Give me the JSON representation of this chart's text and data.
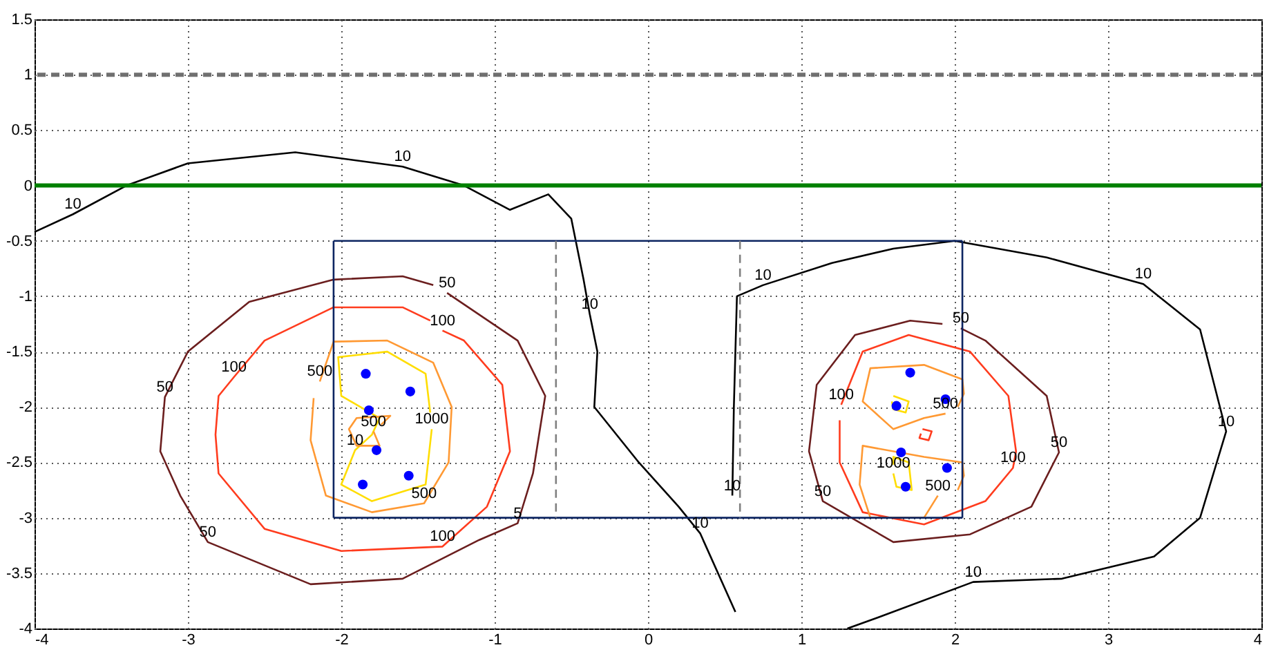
{
  "chart_data": {
    "type": "line",
    "xlim": [
      -4,
      4
    ],
    "ylim": [
      -4,
      1.5
    ],
    "xticks": [
      -4,
      -3,
      -2,
      -1,
      0,
      1,
      2,
      3,
      4
    ],
    "yticks": [
      -4,
      -3.5,
      -3,
      -2.5,
      -2,
      -1.5,
      -1,
      -0.5,
      0,
      0.5,
      1,
      1.5
    ],
    "grid": true,
    "series": [
      {
        "color": "#000000",
        "x": [
          -4,
          -3.75,
          -3.4,
          -3,
          -2.3,
          -1.6,
          -1.2,
          -0.9,
          -0.65,
          -0.5,
          -0.42,
          -0.38,
          -0.33,
          -0.35,
          -0.06,
          0.2,
          0.34,
          0.57
        ],
        "values": [
          -0.42,
          -0.26,
          0,
          0.2,
          0.3,
          0.17,
          0,
          -0.22,
          -0.08,
          -0.3,
          -0.85,
          -1.16,
          -1.5,
          -2.0,
          -2.5,
          -2.9,
          -3.14,
          -3.85
        ]
      },
      {
        "color": "#000000",
        "x": [
          0.55,
          0.56,
          0.58,
          0.75,
          1.2,
          1.6,
          2.0,
          2.6,
          3.23,
          3.6,
          3.77,
          3.6,
          3.3,
          2.7,
          2.12,
          1.5,
          1.3
        ],
        "values": [
          -2.8,
          -2.0,
          -1.0,
          -0.9,
          -0.7,
          -0.57,
          -0.5,
          -0.65,
          -0.89,
          -1.3,
          -2.22,
          -3.0,
          -3.35,
          -3.55,
          -3.58,
          -3.9,
          -4
        ]
      },
      {
        "color": "#6b1e1e",
        "x": [
          -1.31,
          -0.85,
          -0.67,
          -0.75,
          -0.85,
          -1.1,
          -1.6,
          -2.2,
          -2.87,
          -3.05,
          -3.18,
          -3.15,
          -3.0,
          -2.6,
          -2.05,
          -1.6,
          -1.4
        ],
        "values": [
          -0.97,
          -1.4,
          -1.9,
          -2.6,
          -3.05,
          -3.2,
          -3.55,
          -3.6,
          -3.22,
          -2.8,
          -2.4,
          -1.91,
          -1.5,
          -1.05,
          -0.85,
          -0.82,
          -0.9
        ]
      },
      {
        "color": "#ff3c1e",
        "x": [
          -1.34,
          -1.2,
          -0.95,
          -0.9,
          -1.05,
          -1.34,
          -2.0,
          -2.5,
          -2.8,
          -2.82,
          -2.8,
          -2.7,
          -2.5,
          -2.05,
          -1.6,
          -1.42
        ],
        "values": [
          -1.31,
          -1.4,
          -1.8,
          -2.4,
          -2.9,
          -3.26,
          -3.3,
          -3.1,
          -2.6,
          -2.25,
          -1.9,
          -1.73,
          -1.4,
          -1.1,
          -1.1,
          -1.22
        ]
      },
      {
        "color": "#ff9933",
        "x": [
          -2.14,
          -2.05,
          -1.7,
          -1.4,
          -1.28,
          -1.3,
          -1.46,
          -1.8,
          -2.1,
          -2.2,
          -2.18
        ],
        "values": [
          -1.77,
          -1.41,
          -1.4,
          -1.6,
          -2.0,
          -2.5,
          -2.87,
          -2.95,
          -2.8,
          -2.3,
          -1.92
        ]
      },
      {
        "color": "#ffdd00",
        "x": [
          -1.41,
          -1.45,
          -1.8,
          -2.0,
          -1.91,
          -1.8,
          -1.75,
          -2.0,
          -2.02,
          -1.7,
          -1.45,
          -1.42
        ],
        "values": [
          -2.2,
          -2.7,
          -2.85,
          -2.7,
          -2.39,
          -2.25,
          -2.1,
          -1.9,
          -1.55,
          -1.5,
          -1.7,
          -2.05
        ]
      },
      {
        "color": "#ff9933",
        "x": [
          -1.79,
          -1.75,
          -1.9,
          -1.95,
          -1.9,
          -1.68,
          -1.74
        ],
        "values": [
          -2.22,
          -2.35,
          -2.35,
          -2.2,
          -2.1,
          -2.08,
          -2.16
        ]
      },
      {
        "color": "#6b1e1e",
        "x": [
          2.04,
          2.2,
          2.6,
          2.68,
          2.5,
          2.1,
          1.6,
          1.14,
          1.05,
          1.1,
          1.35,
          1.71,
          1.92
        ],
        "values": [
          -1.29,
          -1.4,
          -1.9,
          -2.41,
          -2.9,
          -3.15,
          -3.22,
          -2.85,
          -2.4,
          -1.8,
          -1.35,
          -1.22,
          -1.25
        ]
      },
      {
        "color": "#ff3c1e",
        "x": [
          1.26,
          1.4,
          1.7,
          2.1,
          2.35,
          2.4,
          2.38,
          2.2,
          1.8,
          1.4,
          1.25,
          1.25
        ],
        "values": [
          -1.98,
          -1.5,
          -1.35,
          -1.5,
          -1.9,
          -2.4,
          -2.55,
          -2.85,
          -3.06,
          -2.95,
          -2.5,
          -2.12
        ]
      },
      {
        "color": "#ff9933",
        "x": [
          1.94,
          1.8,
          1.6,
          1.4,
          1.45,
          1.8,
          2.05,
          2.06,
          2.02
        ],
        "values": [
          -2.06,
          -2.1,
          -2.2,
          -1.95,
          -1.65,
          -1.62,
          -1.75,
          -1.88,
          -2.0
        ]
      },
      {
        "color": "#ff9933",
        "x": [
          1.89,
          1.8,
          1.45,
          1.38,
          1.4,
          1.8,
          2.05,
          2.06,
          2.02
        ],
        "values": [
          -2.8,
          -3.0,
          -3.0,
          -2.7,
          -2.35,
          -2.45,
          -2.5,
          -2.62,
          -2.75
        ]
      },
      {
        "color": "#ff3c1e",
        "x": [
          1.79,
          1.85,
          1.83,
          1.77,
          1.78
        ],
        "values": [
          -2.2,
          -2.22,
          -2.3,
          -2.28,
          -2.24
        ]
      },
      {
        "color": "#ffdd00",
        "x": [
          1.6,
          1.7,
          1.68,
          1.6,
          1.59
        ],
        "values": [
          -1.9,
          -1.95,
          -2.05,
          -2.02,
          -1.95
        ]
      },
      {
        "color": "#ffdd00",
        "x": [
          1.6,
          1.62,
          1.72,
          1.7,
          1.6,
          1.6
        ],
        "values": [
          -2.6,
          -2.72,
          -2.75,
          -2.5,
          -2.45,
          -2.52
        ]
      },
      {
        "color": "#0c2461",
        "x": [
          -2.05,
          2.05
        ],
        "values": [
          -0.5,
          -0.5
        ]
      },
      {
        "color": "#0c2461",
        "x": [
          -2.05,
          2.05
        ],
        "values": [
          -3,
          -3
        ]
      },
      {
        "color": "#0c2461",
        "x": [
          -2.05,
          -2.05
        ],
        "values": [
          -0.5,
          -3
        ]
      },
      {
        "color": "#0c2461",
        "x": [
          2.05,
          2.05
        ],
        "values": [
          -0.5,
          -3
        ]
      },
      {
        "color": "#808080",
        "line_style": "dashed",
        "x": [
          -0.6,
          -0.6
        ],
        "values": [
          -0.5,
          -3
        ]
      },
      {
        "color": "#808080",
        "line_style": "dashed",
        "x": [
          0.6,
          0.6
        ],
        "values": [
          -0.5,
          -3
        ]
      },
      {
        "type": "scatter",
        "marker": "circle",
        "color": "#0000ff",
        "x": [
          -1.84,
          -1.55,
          -1.82,
          -1.77,
          -1.86,
          -1.56,
          1.71,
          1.94,
          1.62,
          1.65,
          1.95,
          1.68
        ],
        "values": [
          -1.7,
          -1.86,
          -2.03,
          -2.39,
          -2.7,
          -2.62,
          -1.69,
          -1.93,
          -1.99,
          -2.41,
          -2.55,
          -2.72
        ]
      }
    ],
    "ref_lines": [
      {
        "axis": "y",
        "value": 1,
        "color": "#707070",
        "line_style": "dashed"
      },
      {
        "axis": "y",
        "value": 0,
        "color": "#008000",
        "line_style": "solid"
      }
    ],
    "annotations": [
      {
        "text": "10",
        "x": -1.6,
        "y": 0.17
      },
      {
        "text": "10",
        "x": -3.75,
        "y": -0.26
      },
      {
        "text": "10",
        "x": -0.38,
        "y": -1.16
      },
      {
        "text": "10",
        "x": 0.55,
        "y": -2.8
      },
      {
        "text": "10",
        "x": 0.34,
        "y": -3.14
      },
      {
        "text": "10",
        "x": 0.75,
        "y": -0.9
      },
      {
        "text": "10",
        "x": 3.23,
        "y": -0.89
      },
      {
        "text": "10",
        "x": 3.77,
        "y": -2.22
      },
      {
        "text": "10",
        "x": 2.12,
        "y": -3.58
      },
      {
        "text": "50",
        "x": -1.31,
        "y": -0.97
      },
      {
        "text": "50",
        "x": -3.15,
        "y": -1.91
      },
      {
        "text": "50",
        "x": -2.87,
        "y": -3.22
      },
      {
        "text": "50",
        "x": 2.04,
        "y": -1.29
      },
      {
        "text": "50",
        "x": 2.68,
        "y": -2.41
      },
      {
        "text": "50",
        "x": 1.14,
        "y": -2.85
      },
      {
        "text": "100",
        "x": -1.34,
        "y": -1.31
      },
      {
        "text": "100",
        "x": -2.7,
        "y": -1.73
      },
      {
        "text": "100",
        "x": -1.34,
        "y": -3.26
      },
      {
        "text": "100",
        "x": 1.26,
        "y": -1.98
      },
      {
        "text": "100",
        "x": 2.38,
        "y": -2.55
      },
      {
        "text": "500",
        "x": -2.14,
        "y": -1.77
      },
      {
        "text": "500",
        "x": -1.46,
        "y": -2.87
      },
      {
        "text": "500",
        "x": 1.94,
        "y": -2.06
      },
      {
        "text": "500",
        "x": 1.89,
        "y": -2.8
      },
      {
        "text": "500",
        "x": -1.79,
        "y": -2.22
      },
      {
        "text": "1000",
        "x": -1.41,
        "y": -2.2
      },
      {
        "text": "10",
        "x": -1.91,
        "y": -2.39
      },
      {
        "text": "1000",
        "x": 1.6,
        "y": -2.6
      },
      {
        "text": "5",
        "x": -0.85,
        "y": -3.05
      }
    ]
  }
}
